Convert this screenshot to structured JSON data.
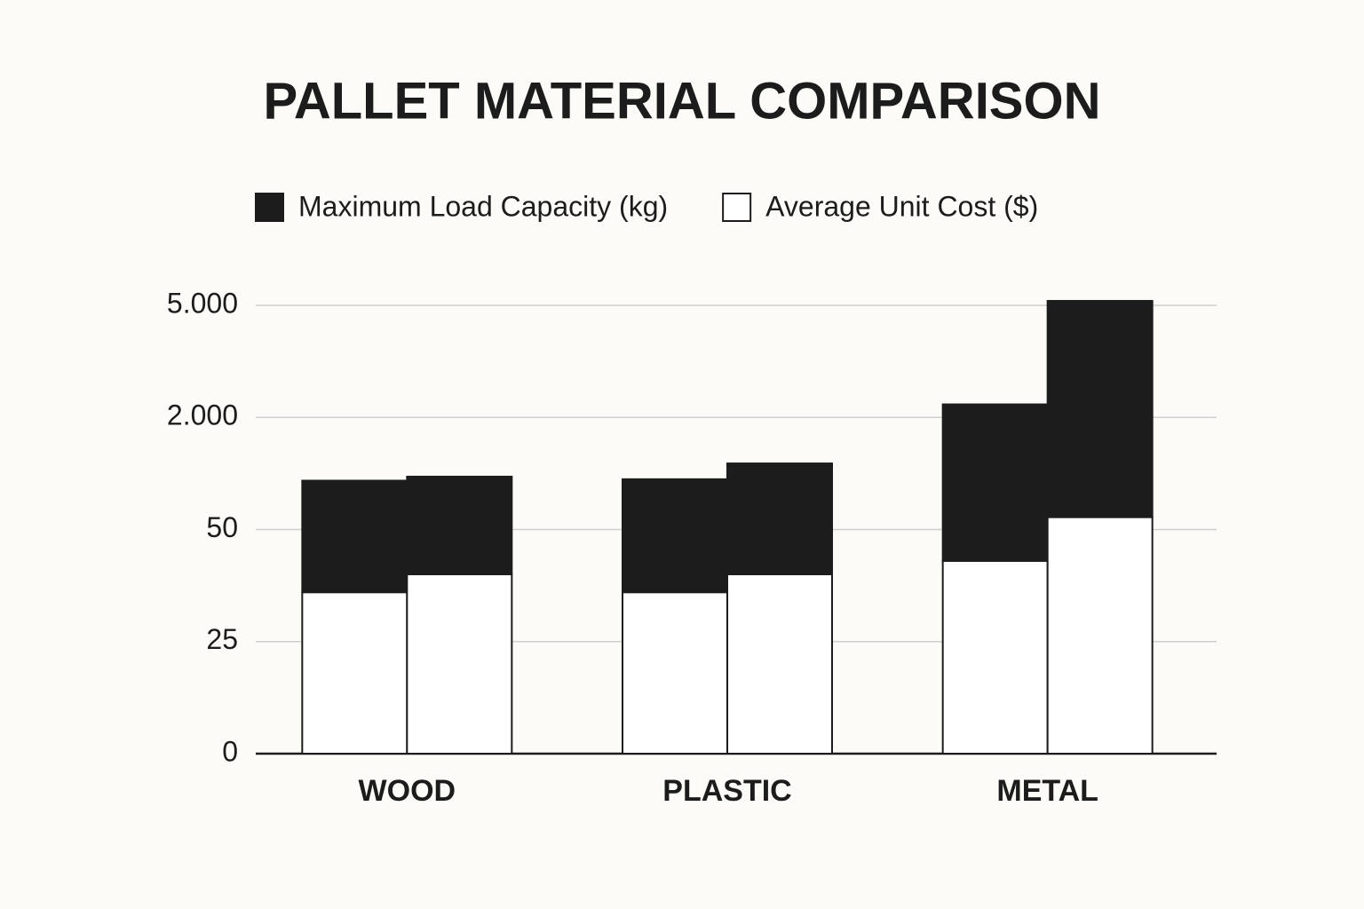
{
  "chart_data": {
    "type": "grouped-stacked-bar",
    "title": "PALLET MATERIAL COMPARISON",
    "categories": [
      "WOOD",
      "PLASTIC",
      "METAL"
    ],
    "series": [
      {
        "name": "Average Unit Cost ($)",
        "color": "#ffffff",
        "values": [
          [
            36,
            40
          ],
          [
            36,
            40
          ],
          [
            43,
            265
          ]
        ]
      },
      {
        "name": "Maximum Load Capacity (kg)",
        "color": "#1c1c1c",
        "values": [
          [
            864,
            930
          ],
          [
            889,
            1160
          ],
          [
            2307,
            4855
          ]
        ]
      }
    ],
    "legend_order": [
      1,
      0
    ],
    "ylim": [
      0,
      5000
    ],
    "yticks": [
      0,
      25,
      50,
      {
        "value": 2000,
        "label": "2.000"
      },
      {
        "value": 5000,
        "label": "5.000"
      }
    ],
    "grid": true
  }
}
